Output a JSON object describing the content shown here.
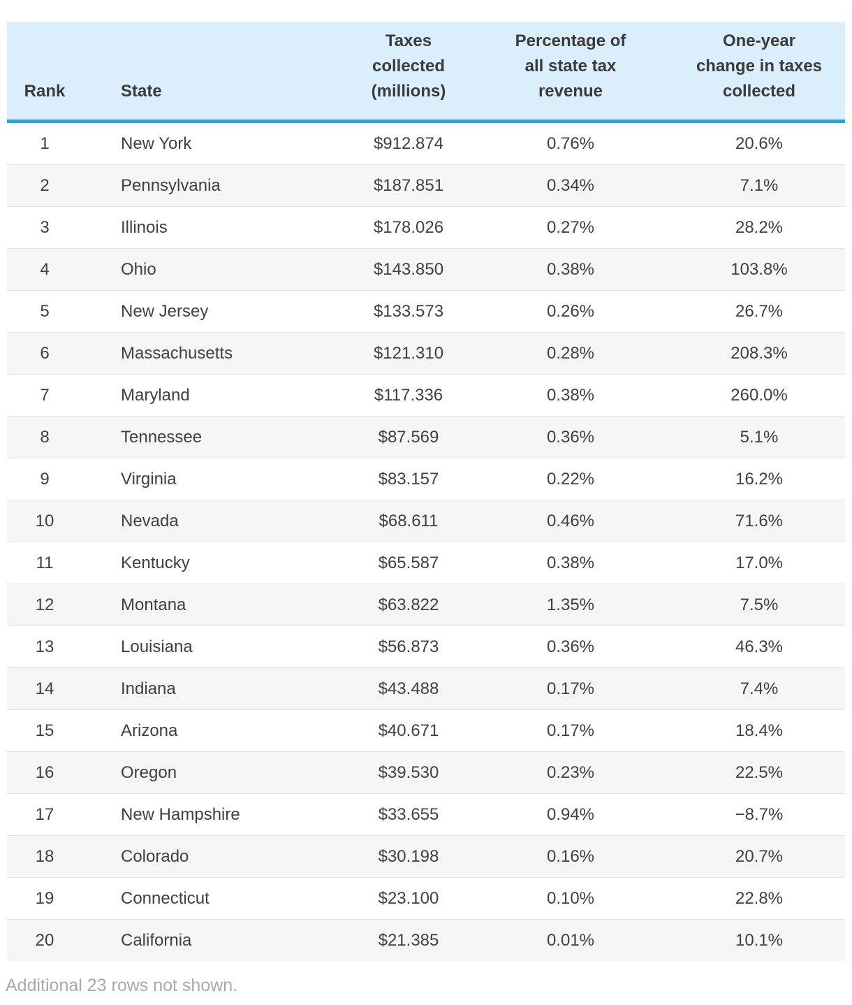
{
  "chart_data": {
    "type": "table",
    "columns": [
      "Rank",
      "State",
      "Taxes\ncollected\n(millions)",
      "Percentage of\nall state tax\nrevenue",
      "One-year\nchange in taxes\ncollected"
    ],
    "rows": [
      {
        "rank": "1",
        "state": "New York",
        "taxes_collected": "$912.874",
        "pct_revenue": "0.76%",
        "one_year_change": "20.6%"
      },
      {
        "rank": "2",
        "state": "Pennsylvania",
        "taxes_collected": "$187.851",
        "pct_revenue": "0.34%",
        "one_year_change": "7.1%"
      },
      {
        "rank": "3",
        "state": "Illinois",
        "taxes_collected": "$178.026",
        "pct_revenue": "0.27%",
        "one_year_change": "28.2%"
      },
      {
        "rank": "4",
        "state": "Ohio",
        "taxes_collected": "$143.850",
        "pct_revenue": "0.38%",
        "one_year_change": "103.8%"
      },
      {
        "rank": "5",
        "state": "New Jersey",
        "taxes_collected": "$133.573",
        "pct_revenue": "0.26%",
        "one_year_change": "26.7%"
      },
      {
        "rank": "6",
        "state": "Massachusetts",
        "taxes_collected": "$121.310",
        "pct_revenue": "0.28%",
        "one_year_change": "208.3%"
      },
      {
        "rank": "7",
        "state": "Maryland",
        "taxes_collected": "$117.336",
        "pct_revenue": "0.38%",
        "one_year_change": "260.0%"
      },
      {
        "rank": "8",
        "state": "Tennessee",
        "taxes_collected": "$87.569",
        "pct_revenue": "0.36%",
        "one_year_change": "5.1%"
      },
      {
        "rank": "9",
        "state": "Virginia",
        "taxes_collected": "$83.157",
        "pct_revenue": "0.22%",
        "one_year_change": "16.2%"
      },
      {
        "rank": "10",
        "state": "Nevada",
        "taxes_collected": "$68.611",
        "pct_revenue": "0.46%",
        "one_year_change": "71.6%"
      },
      {
        "rank": "11",
        "state": "Kentucky",
        "taxes_collected": "$65.587",
        "pct_revenue": "0.38%",
        "one_year_change": "17.0%"
      },
      {
        "rank": "12",
        "state": "Montana",
        "taxes_collected": "$63.822",
        "pct_revenue": "1.35%",
        "one_year_change": "7.5%"
      },
      {
        "rank": "13",
        "state": "Louisiana",
        "taxes_collected": "$56.873",
        "pct_revenue": "0.36%",
        "one_year_change": "46.3%"
      },
      {
        "rank": "14",
        "state": "Indiana",
        "taxes_collected": "$43.488",
        "pct_revenue": "0.17%",
        "one_year_change": "7.4%"
      },
      {
        "rank": "15",
        "state": "Arizona",
        "taxes_collected": "$40.671",
        "pct_revenue": "0.17%",
        "one_year_change": "18.4%"
      },
      {
        "rank": "16",
        "state": "Oregon",
        "taxes_collected": "$39.530",
        "pct_revenue": "0.23%",
        "one_year_change": "22.5%"
      },
      {
        "rank": "17",
        "state": "New Hampshire",
        "taxes_collected": "$33.655",
        "pct_revenue": "0.94%",
        "one_year_change": "−8.7%"
      },
      {
        "rank": "18",
        "state": "Colorado",
        "taxes_collected": "$30.198",
        "pct_revenue": "0.16%",
        "one_year_change": "20.7%"
      },
      {
        "rank": "19",
        "state": "Connecticut",
        "taxes_collected": "$23.100",
        "pct_revenue": "0.10%",
        "one_year_change": "22.8%"
      },
      {
        "rank": "20",
        "state": "California",
        "taxes_collected": "$21.385",
        "pct_revenue": "0.01%",
        "one_year_change": "10.1%"
      }
    ],
    "title": "",
    "layout_hints": "striped table, light blue header with blue underline, 20 of 43 rows shown"
  },
  "footer": {
    "note": "Additional 23 rows not shown."
  },
  "colors": {
    "header_bg": "#dbeefb",
    "accent_border": "#29a3dc",
    "stripe": "#f5f5f5",
    "row_border": "#e4e4e4",
    "header_text": "#3b3b3b",
    "cell_text": "#404040",
    "footnote_text": "#a9a9a9"
  }
}
